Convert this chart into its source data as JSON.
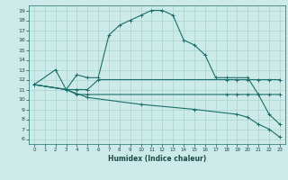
{
  "title": "",
  "xlabel": "Humidex (Indice chaleur)",
  "bg_color": "#cceae7",
  "grid_color": "#aad4d0",
  "line_color": "#1a6e6a",
  "xlim": [
    -0.5,
    23.5
  ],
  "ylim": [
    5.5,
    19.5
  ],
  "xticks": [
    0,
    1,
    2,
    3,
    4,
    5,
    6,
    7,
    8,
    9,
    10,
    11,
    12,
    13,
    14,
    15,
    16,
    17,
    18,
    19,
    20,
    21,
    22,
    23
  ],
  "yticks": [
    6,
    7,
    8,
    9,
    10,
    11,
    12,
    13,
    14,
    15,
    16,
    17,
    18,
    19
  ],
  "curves": [
    {
      "x": [
        0,
        2,
        3,
        4,
        5,
        6,
        7,
        8,
        9,
        10,
        11,
        12,
        13,
        14,
        15,
        16,
        17,
        18,
        20,
        21,
        22,
        23
      ],
      "y": [
        11.5,
        13,
        11,
        12.5,
        12.2,
        12.2,
        16.5,
        17.5,
        18.0,
        18.5,
        19.0,
        19.0,
        18.5,
        16.0,
        15.5,
        14.5,
        12.2,
        12.2,
        12.2,
        10.5,
        8.5,
        7.5
      ]
    },
    {
      "x": [
        0,
        3,
        4,
        5,
        6,
        18,
        19,
        20,
        21,
        22,
        23
      ],
      "y": [
        11.5,
        11.0,
        11.0,
        11.0,
        12.0,
        12.0,
        12.0,
        12.0,
        12.0,
        12.0,
        12.0
      ]
    },
    {
      "x": [
        0,
        3,
        4,
        5,
        18,
        19,
        20,
        21,
        22,
        23
      ],
      "y": [
        11.5,
        11.0,
        10.5,
        10.5,
        10.5,
        10.5,
        10.5,
        10.5,
        10.5,
        10.5
      ]
    },
    {
      "x": [
        0,
        3,
        5,
        10,
        15,
        19,
        20,
        21,
        22,
        23
      ],
      "y": [
        11.5,
        11.0,
        10.2,
        9.5,
        9.0,
        8.5,
        8.2,
        7.5,
        7.0,
        6.2
      ]
    }
  ]
}
